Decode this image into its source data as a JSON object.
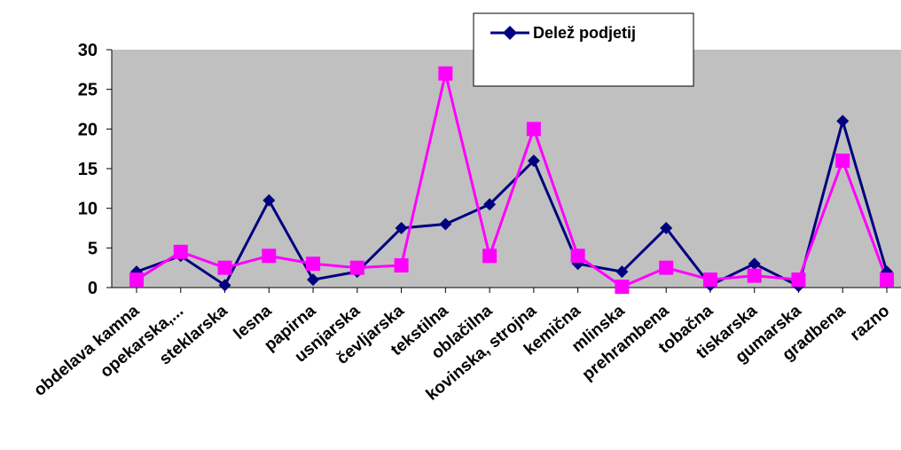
{
  "chart_data": {
    "type": "line",
    "categories": [
      "obdelava kamna",
      "opekarska,...",
      "steklarska",
      "lesna",
      "papirna",
      "usnjarska",
      "čevljarska",
      "tekstilna",
      "oblačilna",
      "kovinska, strojna",
      "kemična",
      "mlinska",
      "prehrambena",
      "tobačna",
      "tiskarska",
      "gumarska",
      "gradbena",
      "razno"
    ],
    "series": [
      {
        "name": "Delež podjetij",
        "color": "#000080",
        "marker": "diamond",
        "values": [
          2,
          4,
          0.3,
          11,
          1,
          2,
          7.5,
          8,
          10.5,
          16,
          3,
          2,
          7.5,
          0.3,
          3,
          0.2,
          21,
          2
        ]
      },
      {
        "name": "",
        "color": "#FF00FF",
        "marker": "square",
        "values": [
          1,
          4.5,
          2.5,
          4,
          3,
          2.5,
          2.8,
          27,
          4,
          20,
          4,
          0.1,
          2.5,
          1,
          1.5,
          1,
          16,
          1
        ]
      }
    ],
    "yticks": [
      "0",
      "5",
      "10",
      "15",
      "20",
      "25",
      "30"
    ],
    "ylim": [
      0,
      30
    ],
    "grid": false,
    "plot_background": "#C0C0C0",
    "legend_position": "top-right"
  }
}
